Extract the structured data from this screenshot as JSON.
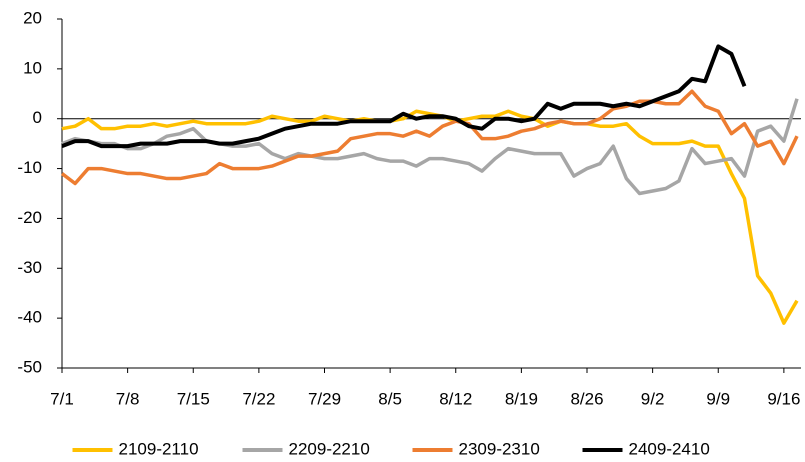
{
  "chart_data": {
    "type": "line",
    "categories": [
      "7/1",
      null,
      null,
      null,
      null,
      "7/8",
      null,
      null,
      null,
      null,
      "7/15",
      null,
      null,
      null,
      null,
      "7/22",
      null,
      null,
      null,
      null,
      "7/29",
      null,
      null,
      null,
      null,
      "8/5",
      null,
      null,
      null,
      null,
      "8/12",
      null,
      null,
      null,
      null,
      "8/19",
      null,
      null,
      null,
      null,
      "8/26",
      null,
      null,
      null,
      null,
      "9/2",
      null,
      null,
      null,
      null,
      "9/9",
      null,
      null,
      null,
      null,
      "9/16",
      null
    ],
    "ylim": [
      -50,
      20
    ],
    "yticks": [
      -50,
      -40,
      -30,
      -20,
      -10,
      0,
      10,
      20
    ],
    "grid": false,
    "legend": "bottom",
    "series": [
      {
        "name": "2109-2110",
        "color": "#ffc000",
        "values": [
          -2,
          -1.5,
          0,
          -2,
          -2,
          -1.5,
          -1.5,
          -1,
          -1.5,
          -1,
          -0.5,
          -1,
          -1,
          -1,
          -1,
          -0.5,
          0.5,
          0,
          -0.5,
          -0.5,
          0.5,
          0,
          -0.5,
          0,
          -0.5,
          -0.5,
          0,
          1.5,
          1,
          0.5,
          -0.5,
          0,
          0.5,
          0.5,
          1.5,
          0.5,
          0,
          -1.5,
          -0.5,
          -1,
          -1,
          -1.5,
          -1.5,
          -1,
          -3.5,
          -5,
          -5,
          -5,
          -4.5,
          -5.5,
          -5.5,
          -11,
          -16,
          -31.5,
          -35,
          -41,
          -36.5
        ]
      },
      {
        "name": "2209-2210",
        "color": "#a6a6a6",
        "values": [
          -5,
          -4,
          -4.5,
          -5,
          -5,
          -6,
          -6,
          -5,
          -3.5,
          -3,
          -2,
          -4.5,
          -5,
          -5.5,
          -5.5,
          -5,
          -7,
          -8,
          -7,
          -7.5,
          -8,
          -8,
          -7.5,
          -7,
          -8,
          -8.5,
          -8.5,
          -9.5,
          -8,
          -8,
          -8.5,
          -9,
          -10.5,
          -8,
          -6,
          -6.5,
          -7,
          -7,
          -7,
          -11.5,
          -10,
          -9,
          -5.5,
          -12,
          -15,
          -14.5,
          -14,
          -12.5,
          -6,
          -9,
          -8.5,
          -8,
          -11.5,
          -2.5,
          -1.5,
          -4.5,
          4
        ]
      },
      {
        "name": "2309-2310",
        "color": "#ed7d31",
        "values": [
          -11,
          -13,
          -10,
          -10,
          -10.5,
          -11,
          -11,
          -11.5,
          -12,
          -12,
          -11.5,
          -11,
          -9,
          -10,
          -10,
          -10,
          -9.5,
          -8.5,
          -7.5,
          -7.5,
          -7,
          -6.5,
          -4,
          -3.5,
          -3,
          -3,
          -3.5,
          -2.5,
          -3.5,
          -1.5,
          -0.5,
          -1,
          -4,
          -4,
          -3.5,
          -2.5,
          -2,
          -1,
          -0.5,
          -1,
          -1,
          0,
          2,
          2.5,
          3.5,
          3.5,
          3,
          3,
          5.5,
          2.5,
          1.5,
          -3,
          -1,
          -5.5,
          -4.5,
          -9,
          -3.5
        ]
      },
      {
        "name": "2409-2410",
        "color": "#000000",
        "values": [
          -5.5,
          -4.5,
          -4.5,
          -5.5,
          -5.5,
          -5.5,
          -5,
          -5,
          -5,
          -4.5,
          -4.5,
          -4.5,
          -5,
          -5,
          -4.5,
          -4,
          -3,
          -2,
          -1.5,
          -1,
          -1,
          -1,
          -0.5,
          -0.5,
          -0.5,
          -0.5,
          1,
          0,
          0.5,
          0.5,
          0,
          -1.5,
          -2,
          0,
          0,
          -0.5,
          0,
          3,
          2,
          3,
          3,
          3,
          2.5,
          3,
          2.5,
          3.5,
          4.5,
          5.5,
          8,
          7.5,
          14.5,
          13,
          6.5,
          null,
          null,
          null,
          null
        ]
      }
    ]
  }
}
